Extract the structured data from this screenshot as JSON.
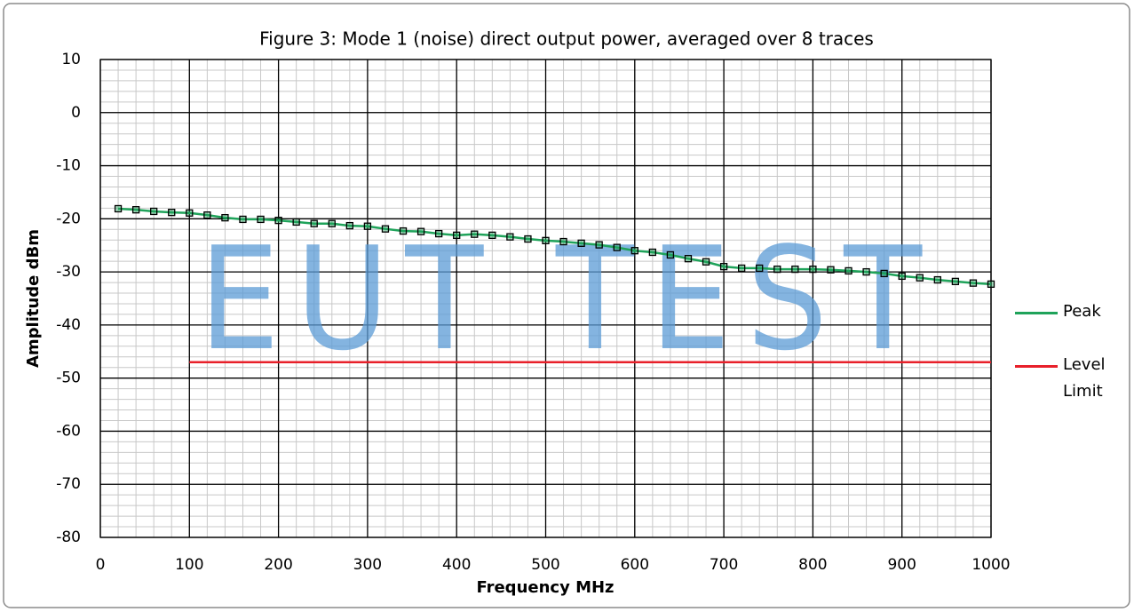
{
  "chart_data": {
    "type": "line",
    "title": "Figure 3: Mode 1 (noise) direct output power, averaged over 8 traces",
    "x_label": "Frequency MHz",
    "y_label": "Amplitude dBm",
    "watermark": "EUT TEST",
    "xlim": [
      0,
      1000
    ],
    "ylim": [
      -80,
      10
    ],
    "xticks": [
      0,
      100,
      200,
      300,
      400,
      500,
      600,
      700,
      800,
      900,
      1000
    ],
    "yticks": [
      10,
      0,
      -10,
      -20,
      -30,
      -40,
      -50,
      -60,
      -70,
      -80
    ],
    "grid": true,
    "minor_grid": {
      "x": 20,
      "y": 2
    },
    "legend": "right",
    "series": [
      {
        "name": "Peak",
        "color": "#1fa35a",
        "marker": "square",
        "x": [
          20,
          40,
          60,
          80,
          100,
          120,
          140,
          160,
          180,
          200,
          220,
          240,
          260,
          280,
          300,
          320,
          340,
          360,
          380,
          400,
          420,
          440,
          460,
          480,
          500,
          520,
          540,
          560,
          580,
          600,
          620,
          640,
          660,
          680,
          700,
          720,
          740,
          760,
          780,
          800,
          820,
          840,
          860,
          880,
          900,
          920,
          940,
          960,
          980,
          1000
        ],
        "values": [
          -18.1,
          -18.3,
          -18.6,
          -18.8,
          -18.9,
          -19.3,
          -19.8,
          -20.1,
          -20.1,
          -20.3,
          -20.6,
          -20.9,
          -20.9,
          -21.3,
          -21.4,
          -21.9,
          -22.3,
          -22.4,
          -22.8,
          -23.1,
          -22.9,
          -23.1,
          -23.4,
          -23.8,
          -24.1,
          -24.3,
          -24.6,
          -24.9,
          -25.4,
          -26.0,
          -26.3,
          -26.8,
          -27.5,
          -28.1,
          -29.0,
          -29.3,
          -29.3,
          -29.5,
          -29.5,
          -29.5,
          -29.6,
          -29.8,
          -30.0,
          -30.3,
          -30.8,
          -31.1,
          -31.5,
          -31.8,
          -32.1,
          -32.3
        ]
      },
      {
        "name": "Level Limit",
        "color": "#e8202a",
        "x": [
          100,
          1000
        ],
        "values": [
          -47,
          -47
        ]
      }
    ]
  }
}
